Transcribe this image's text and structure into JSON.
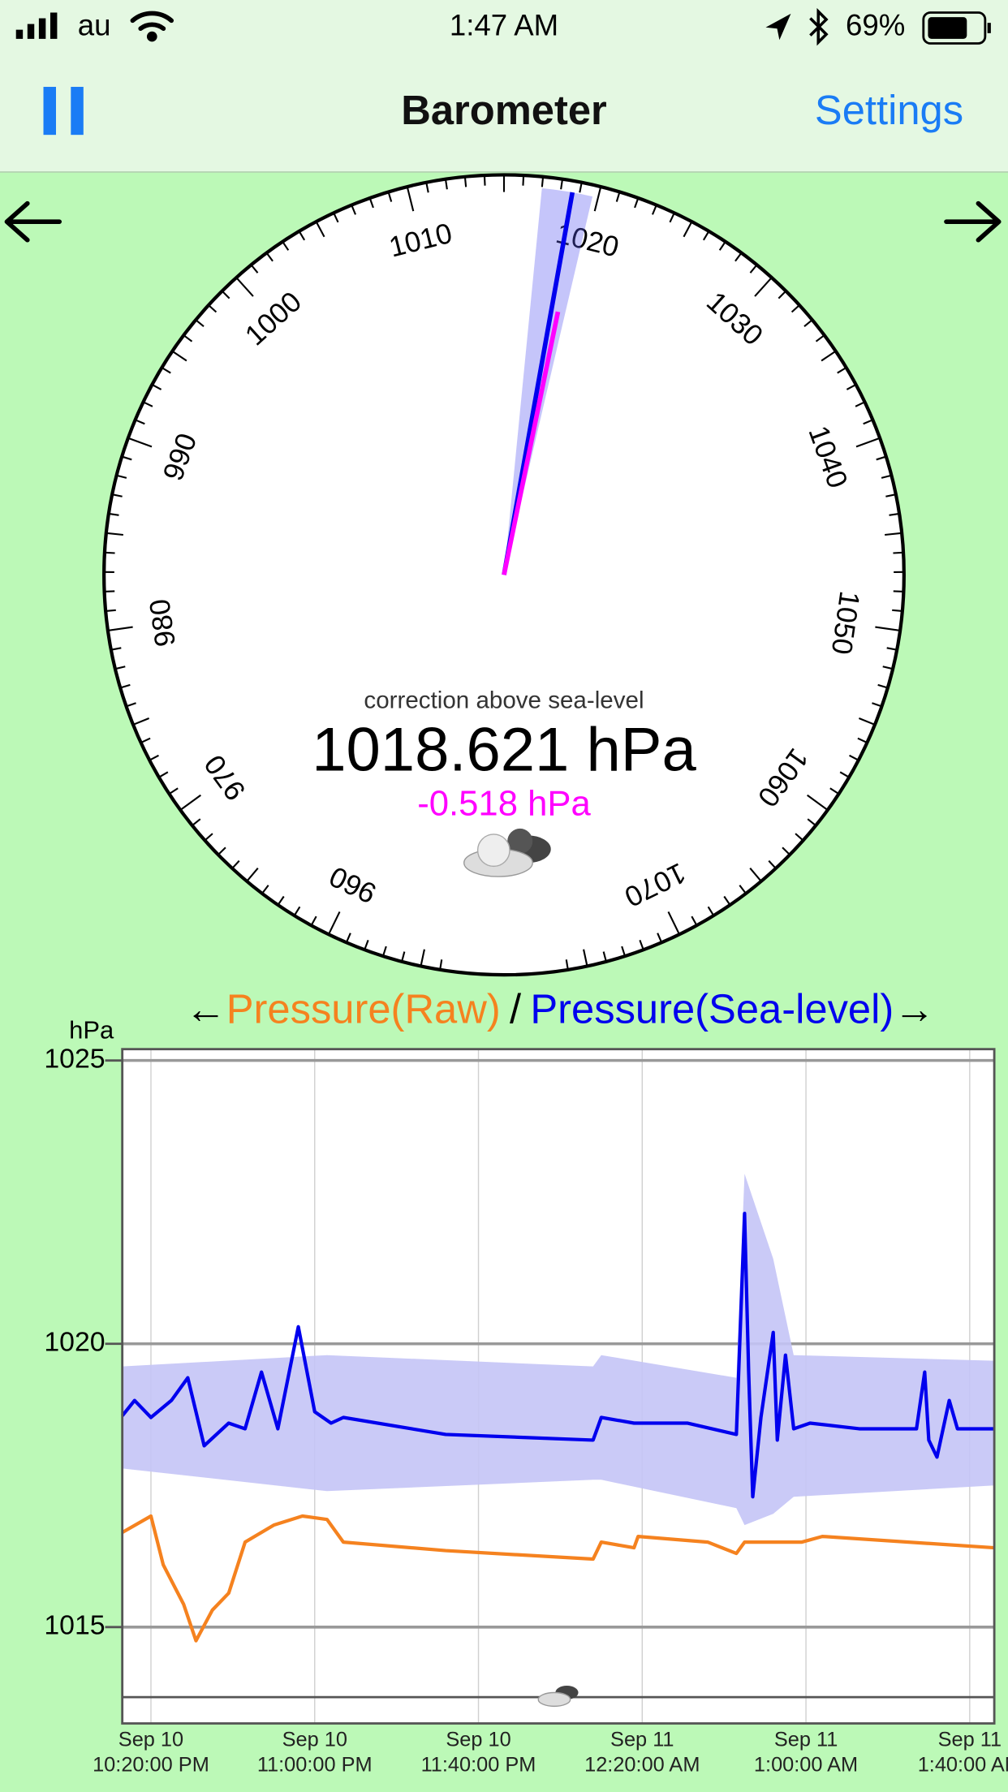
{
  "status_bar": {
    "carrier": "au",
    "time": "1:47 AM",
    "battery": "69%"
  },
  "nav_bar": {
    "title": "Barometer",
    "settings": "Settings"
  },
  "gauge": {
    "dial_labels": [
      960,
      970,
      980,
      990,
      1000,
      1010,
      1020,
      1030,
      1040,
      1050,
      1060,
      1070
    ],
    "minor_tick_step": 1,
    "caption": "correction above sea-level",
    "reading": 1018.621,
    "unit": "hPa",
    "correction": -0.518,
    "range": [
      1017.0,
      1019.7
    ]
  },
  "chart_data": {
    "type": "line",
    "y_label": "hPa",
    "legend_prev": "←",
    "legend_separator": "/",
    "legend_next": "→",
    "ylim": [
      1013.3,
      1025.2
    ],
    "yticks": [
      1015,
      1020,
      1025
    ],
    "xlim": [
      "Sep 10 22:13",
      "Sep 11 01:46"
    ],
    "xticks": [
      {
        "value": "Sep 10 22:20",
        "label": "Sep 10\n10:20:00 PM"
      },
      {
        "value": "Sep 10 23:00",
        "label": "Sep 10\n11:00:00 PM"
      },
      {
        "value": "Sep 10 23:40",
        "label": "Sep 10\n11:40:00 PM"
      },
      {
        "value": "Sep 11 00:20",
        "label": "Sep 11\n12:20:00 AM"
      },
      {
        "value": "Sep 11 01:00",
        "label": "Sep 11\n1:00:00 AM"
      },
      {
        "value": "Sep 11 01:40",
        "label": "Sep 11\n1:40:00 AM"
      }
    ],
    "grid": true,
    "band": {
      "color": "#c4c4f6",
      "x": [
        "Sep 10 22:13",
        "Sep 10 23:03",
        "Sep 11 00:08",
        "Sep 11 00:10",
        "Sep 11 00:43",
        "Sep 11 00:45",
        "Sep 11 00:52",
        "Sep 11 00:57",
        "Sep 11 01:46"
      ],
      "upper": [
        1019.6,
        1019.8,
        1019.6,
        1019.8,
        1019.4,
        1023.0,
        1021.5,
        1019.8,
        1019.7
      ],
      "lower": [
        1017.8,
        1017.4,
        1017.6,
        1017.6,
        1017.1,
        1016.8,
        1017.0,
        1017.3,
        1017.5
      ]
    },
    "series": [
      {
        "name": "Pressure(Raw)",
        "color": "#f5821f",
        "x": [
          "Sep 10 22:13",
          "Sep 10 22:20",
          "Sep 10 22:23",
          "Sep 10 22:28",
          "Sep 10 22:31",
          "Sep 10 22:35",
          "Sep 10 22:39",
          "Sep 10 22:43",
          "Sep 10 22:50",
          "Sep 10 22:57",
          "Sep 10 23:03",
          "Sep 10 23:07",
          "Sep 10 23:32",
          "Sep 11 00:08",
          "Sep 11 00:10",
          "Sep 11 00:18",
          "Sep 11 00:19",
          "Sep 11 00:36",
          "Sep 11 00:43",
          "Sep 11 00:45",
          "Sep 11 00:59",
          "Sep 11 01:04",
          "Sep 11 01:46"
        ],
        "values": [
          1016.67,
          1016.96,
          1016.1,
          1015.4,
          1014.76,
          1015.3,
          1015.6,
          1016.5,
          1016.8,
          1016.96,
          1016.9,
          1016.5,
          1016.35,
          1016.2,
          1016.5,
          1016.4,
          1016.6,
          1016.5,
          1016.3,
          1016.5,
          1016.5,
          1016.6,
          1016.4
        ]
      },
      {
        "name": "Pressure(Sea-level)",
        "color": "#0000ee",
        "x": [
          "Sep 10 22:13",
          "Sep 10 22:16",
          "Sep 10 22:20",
          "Sep 10 22:25",
          "Sep 10 22:29",
          "Sep 10 22:33",
          "Sep 10 22:39",
          "Sep 10 22:43",
          "Sep 10 22:47",
          "Sep 10 22:51",
          "Sep 10 22:56",
          "Sep 10 23:00",
          "Sep 10 23:04",
          "Sep 10 23:07",
          "Sep 10 23:32",
          "Sep 11 00:08",
          "Sep 11 00:10",
          "Sep 11 00:18",
          "Sep 11 00:31",
          "Sep 11 00:43",
          "Sep 11 00:45",
          "Sep 11 00:46",
          "Sep 11 00:47",
          "Sep 11 00:49",
          "Sep 11 00:52",
          "Sep 11 00:53",
          "Sep 11 00:55",
          "Sep 11 00:57",
          "Sep 11 01:01",
          "Sep 11 01:13",
          "Sep 11 01:27",
          "Sep 11 01:29",
          "Sep 11 01:30",
          "Sep 11 01:32",
          "Sep 11 01:35",
          "Sep 11 01:37",
          "Sep 11 01:46"
        ],
        "values": [
          1018.73,
          1019.0,
          1018.7,
          1019.0,
          1019.4,
          1018.2,
          1018.6,
          1018.5,
          1019.5,
          1018.5,
          1020.3,
          1018.8,
          1018.6,
          1018.7,
          1018.4,
          1018.3,
          1018.7,
          1018.6,
          1018.6,
          1018.4,
          1022.3,
          1019.5,
          1017.3,
          1018.7,
          1020.2,
          1018.3,
          1019.8,
          1018.5,
          1018.6,
          1018.5,
          1018.5,
          1019.5,
          1018.3,
          1018.0,
          1019.0,
          1018.5,
          1018.5
        ]
      }
    ]
  }
}
